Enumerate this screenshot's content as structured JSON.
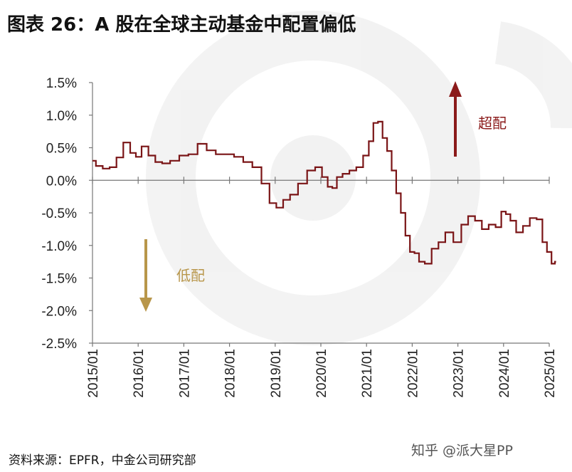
{
  "title": "图表 26：A 股在全球主动基金中配置偏低",
  "source": "资料来源：EPFR，中金公司研究部",
  "watermark": "知乎 @派大星PP",
  "annotations": {
    "overweight": {
      "text": "超配",
      "color": "#8B1A1A"
    },
    "underweight": {
      "text": "低配",
      "color": "#B8964A"
    }
  },
  "colors": {
    "line": "#7A1416",
    "axis": "#777777"
  },
  "chart_data": {
    "type": "line",
    "title": "图表 26：A 股在全球主动基金中配置偏低",
    "xlabel": "",
    "ylabel": "",
    "ylim": [
      -2.5,
      1.5
    ],
    "y_ticks": [
      1.5,
      1.0,
      0.5,
      0.0,
      -0.5,
      -1.0,
      -1.5,
      -2.0,
      -2.5
    ],
    "y_tick_labels": [
      "1.5%",
      "1.0%",
      "0.5%",
      "0.0%",
      "-0.5%",
      "-1.0%",
      "-1.5%",
      "-2.0%",
      "-2.5%"
    ],
    "x_tick_labels": [
      "2015/01",
      "2016/01",
      "2017/01",
      "2018/01",
      "2019/01",
      "2020/01",
      "2021/01",
      "2022/01",
      "2023/01",
      "2024/01",
      "2025/01"
    ],
    "grid": false,
    "series": [
      {
        "x": [
          2015.0,
          2015.15,
          2015.3,
          2015.45,
          2015.6,
          2015.75,
          2015.9,
          2016.0,
          2016.15,
          2016.3,
          2016.45,
          2016.6,
          2016.8,
          2017.0,
          2017.2,
          2017.4,
          2017.6,
          2017.8,
          2018.0,
          2018.2,
          2018.4,
          2018.6,
          2018.8,
          2018.95,
          2019.1,
          2019.25,
          2019.4,
          2019.6,
          2019.8,
          2019.95,
          2020.1,
          2020.2,
          2020.3,
          2020.4,
          2020.55,
          2020.7,
          2020.85,
          2021.0,
          2021.1,
          2021.2,
          2021.3,
          2021.4,
          2021.5,
          2021.6,
          2021.7,
          2021.8,
          2021.9,
          2022.0,
          2022.1,
          2022.2,
          2022.35,
          2022.5,
          2022.65,
          2022.8,
          2023.0,
          2023.15,
          2023.3,
          2023.45,
          2023.6,
          2023.75,
          2023.9,
          2024.0,
          2024.1,
          2024.2,
          2024.35,
          2024.5,
          2024.65,
          2024.8,
          2024.9,
          2025.0,
          2025.1,
          2025.15
        ],
        "y": [
          0.3,
          0.22,
          0.18,
          0.2,
          0.35,
          0.58,
          0.42,
          0.36,
          0.52,
          0.38,
          0.28,
          0.26,
          0.3,
          0.38,
          0.4,
          0.56,
          0.46,
          0.4,
          0.4,
          0.36,
          0.28,
          0.2,
          -0.05,
          -0.35,
          -0.42,
          -0.3,
          -0.22,
          -0.05,
          0.15,
          0.2,
          0.05,
          -0.1,
          -0.12,
          0.05,
          0.1,
          0.15,
          0.2,
          0.38,
          0.6,
          0.88,
          0.9,
          0.65,
          0.45,
          0.15,
          -0.2,
          -0.5,
          -0.85,
          -1.1,
          -1.12,
          -1.25,
          -1.28,
          -1.05,
          -0.95,
          -0.8,
          -0.95,
          -0.68,
          -0.55,
          -0.62,
          -0.75,
          -0.68,
          -0.72,
          -0.48,
          -0.52,
          -0.62,
          -0.8,
          -0.7,
          -0.58,
          -0.6,
          -0.95,
          -1.1,
          -1.28,
          -1.25
        ]
      }
    ]
  }
}
